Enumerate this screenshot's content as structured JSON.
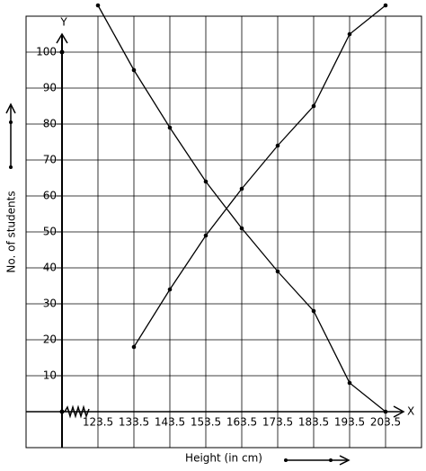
{
  "chart_data": {
    "type": "line",
    "x_label": "Height (in cm)",
    "y_label": "No. of students",
    "x_axis_letter": "X",
    "y_axis_letter": "Y",
    "series": [
      {
        "color": "#000000",
        "x": [
          133.5,
          143.5,
          153.5,
          163.5,
          173.5,
          183.5,
          193.5,
          203.5
        ],
        "values": [
          18,
          34,
          49,
          62,
          74,
          85,
          105,
          113
        ]
      },
      {
        "color": "#000000",
        "x": [
          123.5,
          133.5,
          143.5,
          153.5,
          163.5,
          173.5,
          183.5,
          193.5,
          203.5
        ],
        "values": [
          113,
          95,
          79,
          64,
          51,
          39,
          28,
          8,
          0
        ]
      }
    ],
    "xlim": [
      103.5,
      213.5
    ],
    "ylim": [
      -10,
      110
    ],
    "xticks": [
      123.5,
      133.5,
      143.5,
      153.5,
      163.5,
      173.5,
      183.5,
      193.5,
      203.5
    ],
    "yticks": [
      10,
      20,
      30,
      40,
      50,
      60,
      70,
      80,
      90,
      100
    ],
    "grid": true
  }
}
